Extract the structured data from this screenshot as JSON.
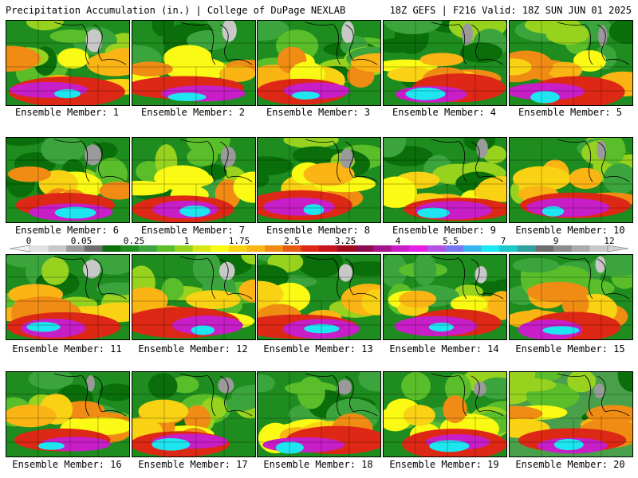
{
  "header": {
    "left": "Precipitation Accumulation (in.) | College of DuPage NEXLAB",
    "right": "18Z GEFS | F216 Valid: 18Z SUN JUN 01 2025"
  },
  "colorbar": {
    "labels": [
      "0",
      "0.05",
      "0.25",
      "1",
      "1.75",
      "2.5",
      "3.25",
      "4",
      "5.5",
      "7",
      "9",
      "12"
    ],
    "colors": [
      "#e2e2e2",
      "#c8c8c8",
      "#9a9a9a",
      "#6e6e6e",
      "#0a6e0a",
      "#1e8c1e",
      "#3ca43c",
      "#5abe2a",
      "#96d21e",
      "#d8e614",
      "#fafa14",
      "#fad214",
      "#fab414",
      "#f08c14",
      "#e65a14",
      "#dc2814",
      "#c8141e",
      "#a00a1e",
      "#8c0a50",
      "#a0148c",
      "#c81ec8",
      "#e61ee6",
      "#b450e6",
      "#7878f0",
      "#3cb4f0",
      "#1ee6f0",
      "#1ec8c8",
      "#32a0a0",
      "#6e6e6e",
      "#8c8c8c",
      "#aaaaaa",
      "#c8c8c8"
    ]
  },
  "panels": [
    {
      "caption": "Ensemble Member: 1"
    },
    {
      "caption": "Ensemble Member: 2"
    },
    {
      "caption": "Ensemble Member: 3"
    },
    {
      "caption": "Ensemble Member: 4"
    },
    {
      "caption": "Ensemble Member: 5"
    },
    {
      "caption": "Ensemble Member: 6"
    },
    {
      "caption": "Ensemble Member: 7"
    },
    {
      "caption": "Ensemble Member: 8"
    },
    {
      "caption": "Ensemble Member: 9"
    },
    {
      "caption": "Ensemble Member: 10"
    },
    {
      "caption": "Ensemble Member: 11"
    },
    {
      "caption": "Ensemble Member: 12"
    },
    {
      "caption": "Ensemble Member: 13"
    },
    {
      "caption": "Ensemble Member: 14"
    },
    {
      "caption": "Ensemble Member: 15"
    },
    {
      "caption": "Ensemble Member: 16"
    },
    {
      "caption": "Ensemble Member: 17"
    },
    {
      "caption": "Ensemble Member: 18"
    },
    {
      "caption": "Ensemble Member: 19"
    },
    {
      "caption": "Ensemble Member: 20"
    }
  ]
}
